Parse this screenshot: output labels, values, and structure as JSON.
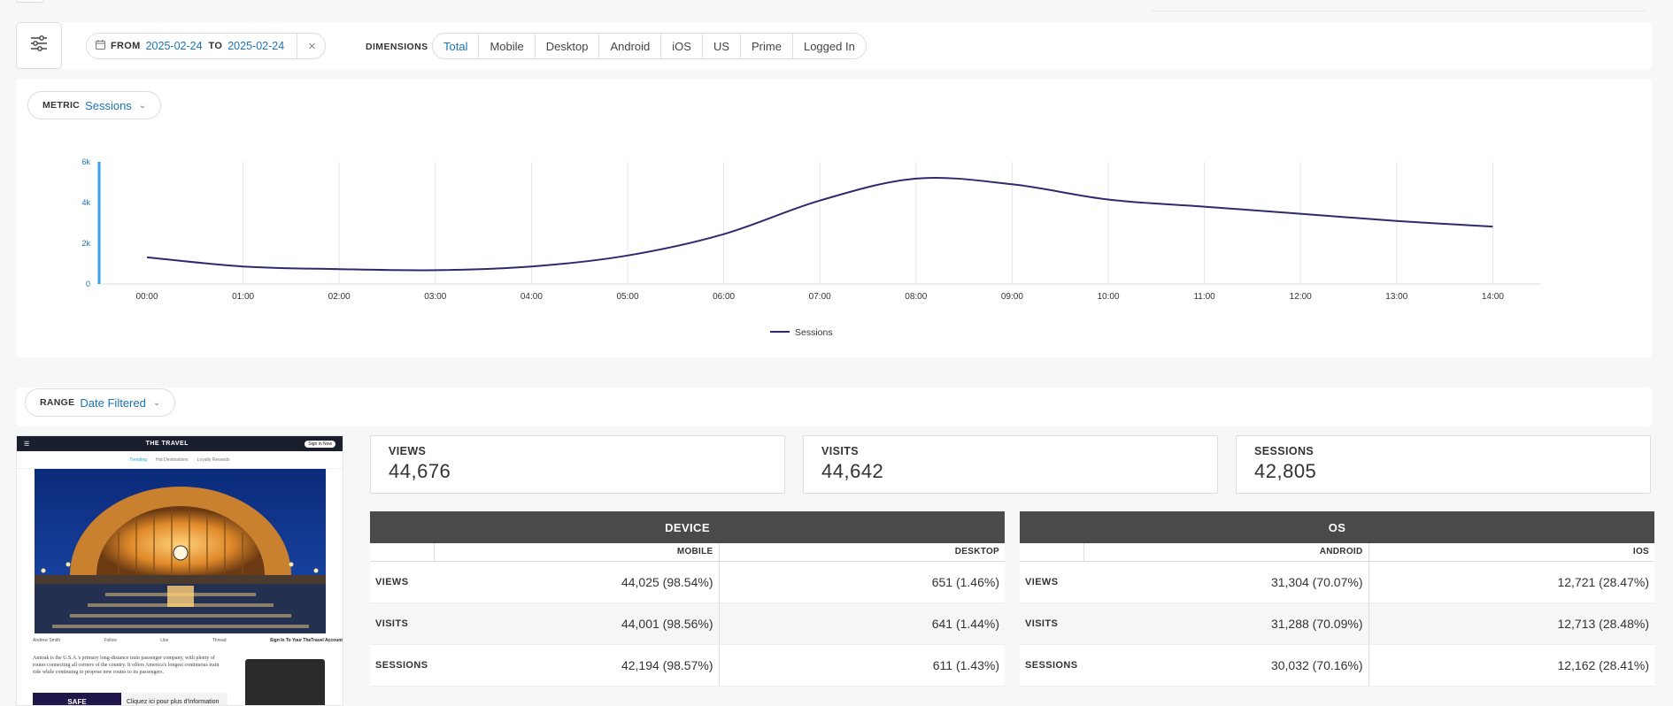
{
  "filter": {
    "from_label": "FROM",
    "from_value": "2025-02-24",
    "to_label": "TO",
    "to_value": "2025-02-24",
    "clear_icon": "×",
    "dimensions_label": "DIMENSIONS",
    "dimensions": [
      "Total",
      "Mobile",
      "Desktop",
      "Android",
      "iOS",
      "US",
      "Prime",
      "Logged In"
    ],
    "active_dimension": "Total"
  },
  "metric": {
    "label": "METRIC",
    "value": "Sessions"
  },
  "range": {
    "label": "RANGE",
    "value": "Date Filtered"
  },
  "chart_data": {
    "type": "line",
    "x": [
      "00:00",
      "01:00",
      "02:00",
      "03:00",
      "04:00",
      "05:00",
      "06:00",
      "07:00",
      "08:00",
      "09:00",
      "10:00",
      "11:00",
      "12:00",
      "13:00",
      "14:00"
    ],
    "yticks": [
      "0",
      "2k",
      "4k",
      "6k"
    ],
    "ylim": [
      0,
      6000
    ],
    "series": [
      {
        "name": "Sessions",
        "color": "#2d2a6e",
        "values": [
          1310,
          860,
          730,
          680,
          860,
          1400,
          2450,
          4100,
          5180,
          4900,
          4150,
          3800,
          3450,
          3100,
          2820
        ]
      }
    ],
    "legend": "bottom-center",
    "grid": "vertical"
  },
  "preview": {
    "site": "THE TRAVEL",
    "signin": "Sign in Now",
    "nav": [
      "Trending",
      "Hot Destinations",
      "Loyalty Rewards"
    ],
    "author": "Andrew Smith",
    "actions": [
      "Follow",
      "Like",
      "Thread"
    ],
    "cta": "Sign In To Your TheTravel Account",
    "body": "Amtrak is the U.S.A.'s primary long-distance train passenger company, with plenty of routes connecting all corners of the country. It offers America's longest continuous train ride while continuing to propose new routes to its passengers.",
    "ad_brand": "SAFE",
    "ad_text": "Cliquez ici pour plus d'information"
  },
  "stats": [
    {
      "title": "VIEWS",
      "value": "44,676"
    },
    {
      "title": "VISITS",
      "value": "44,642"
    },
    {
      "title": "SESSIONS",
      "value": "42,805"
    }
  ],
  "device": {
    "title": "DEVICE",
    "cols": [
      "MOBILE",
      "DESKTOP"
    ],
    "rows": [
      {
        "label": "VIEWS",
        "a": "44,025 (98.54%)",
        "b": "651 (1.46%)"
      },
      {
        "label": "VISITS",
        "a": "44,001 (98.56%)",
        "b": "641 (1.44%)"
      },
      {
        "label": "SESSIONS",
        "a": "42,194 (98.57%)",
        "b": "611 (1.43%)"
      }
    ]
  },
  "os": {
    "title": "OS",
    "cols": [
      "ANDROID",
      "IOS"
    ],
    "rows": [
      {
        "label": "VIEWS",
        "a": "31,304 (70.07%)",
        "b": "12,721 (28.47%)"
      },
      {
        "label": "VISITS",
        "a": "31,288 (70.09%)",
        "b": "12,713 (28.48%)"
      },
      {
        "label": "SESSIONS",
        "a": "30,032 (70.16%)",
        "b": "12,162 (28.41%)"
      }
    ]
  }
}
